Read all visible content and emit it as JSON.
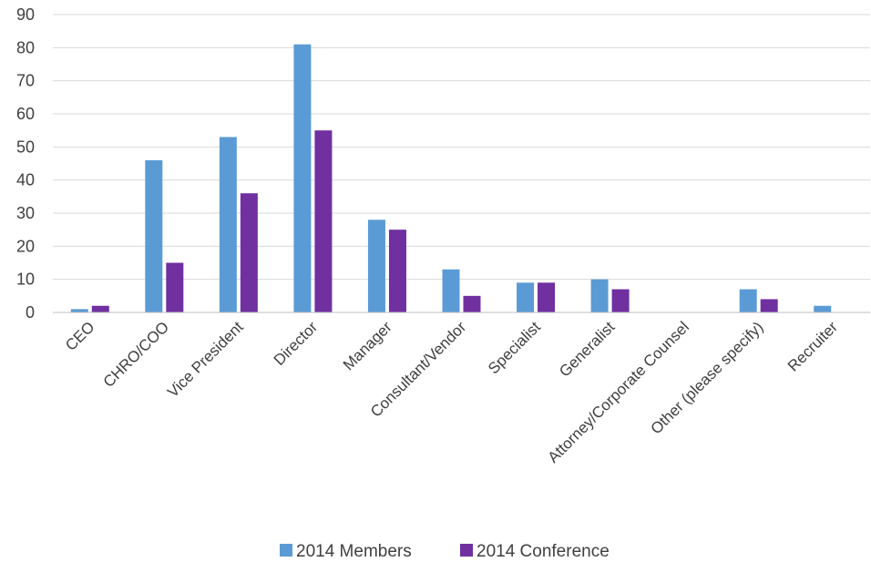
{
  "chart_data": {
    "type": "bar",
    "categories": [
      "CEO",
      "CHRO/COO",
      "Vice President",
      "Director",
      "Manager",
      "Consultant/Vendor",
      "Specialist",
      "Generalist",
      "Attorney/Corporate Counsel",
      "Other (please specify)",
      "Recruiter"
    ],
    "series": [
      {
        "name": "2014 Members",
        "color": "#5b9bd5",
        "values": [
          1,
          46,
          53,
          81,
          28,
          13,
          9,
          10,
          0,
          7,
          2
        ]
      },
      {
        "name": "2014 Conference",
        "color": "#7030a0",
        "values": [
          2,
          15,
          36,
          55,
          25,
          5,
          9,
          7,
          0,
          4,
          0
        ]
      }
    ],
    "ylim": [
      0,
      90
    ],
    "yticks": [
      0,
      10,
      20,
      30,
      40,
      50,
      60,
      70,
      80,
      90
    ],
    "grid": true,
    "legend_position": "bottom"
  }
}
